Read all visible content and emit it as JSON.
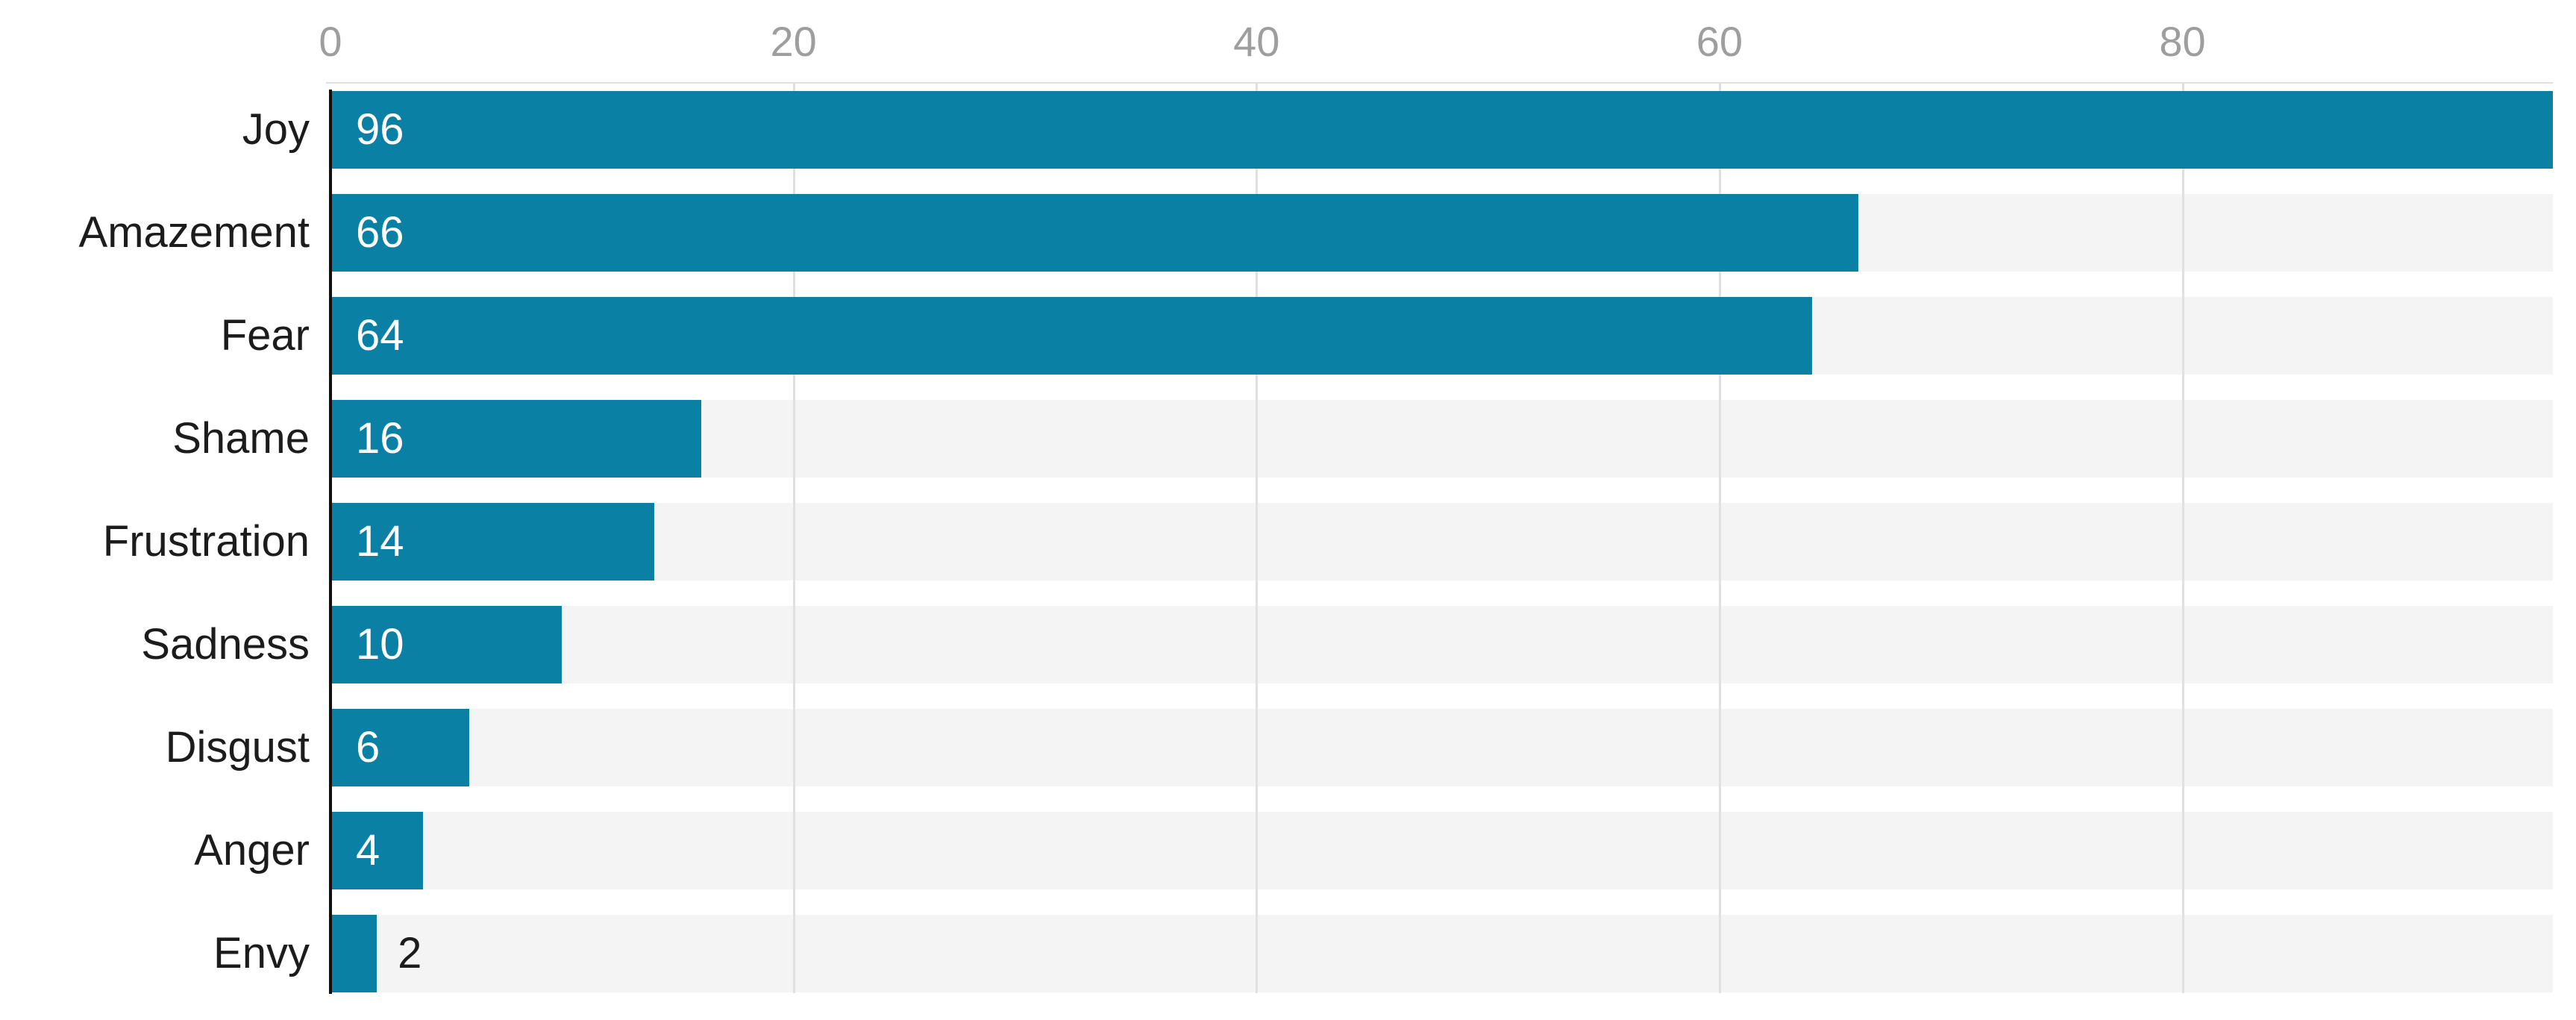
{
  "chart_data": {
    "type": "bar",
    "orientation": "horizontal",
    "title": "",
    "xlabel": "",
    "ylabel": "",
    "categories": [
      "Joy",
      "Amazement",
      "Fear",
      "Shame",
      "Frustration",
      "Sadness",
      "Disgust",
      "Anger",
      "Envy"
    ],
    "values": [
      96,
      66,
      64,
      16,
      14,
      10,
      6,
      4,
      2
    ],
    "value_labels": [
      "96",
      "66",
      "64",
      "16",
      "14",
      "10",
      "6",
      "4",
      "2"
    ],
    "x_ticks": [
      0,
      20,
      40,
      60,
      80
    ],
    "x_tick_labels": [
      "0",
      "20",
      "40",
      "60",
      "80"
    ],
    "xlim": [
      0,
      96
    ],
    "tick_position": "top",
    "grid": "vertical",
    "legend": null,
    "colors": {
      "bar": "#0a80a4",
      "row_track": "#f4f4f4",
      "gridline": "#e0e0e0",
      "axis_line": "#101010",
      "tick_label": "#9e9e9e",
      "category_label": "#1c1c1c",
      "value_label_inside": "#ffffff",
      "value_label_outside": "#1c1c1c"
    }
  }
}
